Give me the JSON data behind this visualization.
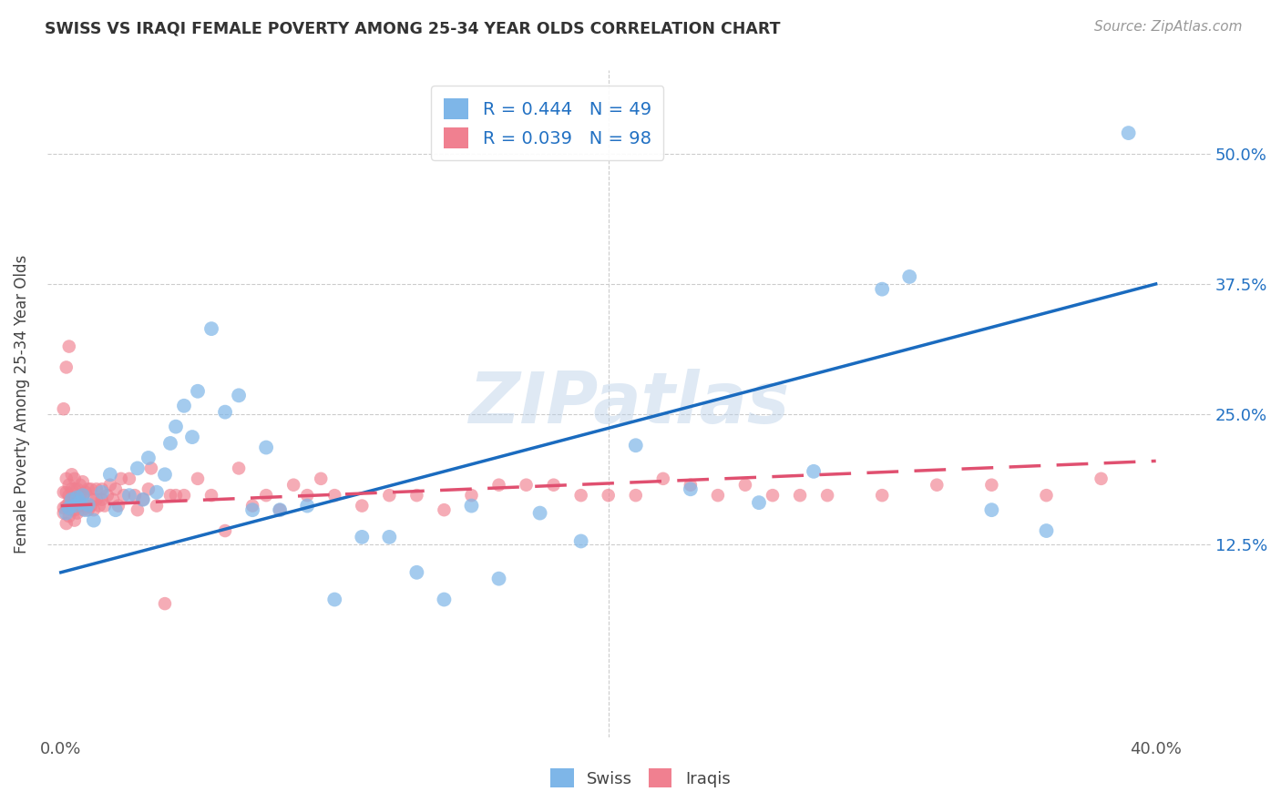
{
  "title": "SWISS VS IRAQI FEMALE POVERTY AMONG 25-34 YEAR OLDS CORRELATION CHART",
  "source": "Source: ZipAtlas.com",
  "ylabel": "Female Poverty Among 25-34 Year Olds",
  "xlim": [
    -0.005,
    0.42
  ],
  "ylim": [
    -0.06,
    0.58
  ],
  "swiss_color": "#7eb6e8",
  "iraqi_color": "#f08090",
  "swiss_line_color": "#1a6bbf",
  "iraqi_line_color": "#e05070",
  "swiss_R": 0.444,
  "swiss_N": 49,
  "iraqi_R": 0.039,
  "iraqi_N": 98,
  "watermark": "ZIPatlas",
  "legend_label_swiss": "Swiss",
  "legend_label_iraqi": "Iraqis",
  "right_tick_color": "#2271c3",
  "swiss_x": [
    0.002,
    0.003,
    0.004,
    0.005,
    0.006,
    0.007,
    0.008,
    0.009,
    0.01,
    0.012,
    0.015,
    0.018,
    0.02,
    0.025,
    0.028,
    0.03,
    0.032,
    0.035,
    0.038,
    0.04,
    0.042,
    0.045,
    0.048,
    0.05,
    0.055,
    0.06,
    0.065,
    0.07,
    0.075,
    0.08,
    0.09,
    0.1,
    0.11,
    0.12,
    0.13,
    0.14,
    0.15,
    0.16,
    0.175,
    0.19,
    0.21,
    0.23,
    0.255,
    0.275,
    0.3,
    0.31,
    0.34,
    0.36,
    0.39
  ],
  "swiss_y": [
    0.155,
    0.16,
    0.168,
    0.162,
    0.17,
    0.165,
    0.172,
    0.158,
    0.163,
    0.148,
    0.175,
    0.192,
    0.158,
    0.172,
    0.198,
    0.168,
    0.208,
    0.175,
    0.192,
    0.222,
    0.238,
    0.258,
    0.228,
    0.272,
    0.332,
    0.252,
    0.268,
    0.158,
    0.218,
    0.158,
    0.162,
    0.072,
    0.132,
    0.132,
    0.098,
    0.072,
    0.162,
    0.092,
    0.155,
    0.128,
    0.22,
    0.178,
    0.165,
    0.195,
    0.37,
    0.382,
    0.158,
    0.138,
    0.52
  ],
  "iraqi_x": [
    0.001,
    0.001,
    0.001,
    0.002,
    0.002,
    0.002,
    0.002,
    0.003,
    0.003,
    0.003,
    0.003,
    0.004,
    0.004,
    0.004,
    0.004,
    0.005,
    0.005,
    0.005,
    0.005,
    0.005,
    0.006,
    0.006,
    0.006,
    0.007,
    0.007,
    0.007,
    0.008,
    0.008,
    0.008,
    0.009,
    0.009,
    0.01,
    0.01,
    0.011,
    0.011,
    0.012,
    0.012,
    0.013,
    0.013,
    0.014,
    0.015,
    0.015,
    0.016,
    0.017,
    0.018,
    0.019,
    0.02,
    0.021,
    0.022,
    0.023,
    0.025,
    0.027,
    0.028,
    0.03,
    0.032,
    0.033,
    0.035,
    0.038,
    0.04,
    0.042,
    0.045,
    0.05,
    0.055,
    0.06,
    0.065,
    0.07,
    0.075,
    0.08,
    0.085,
    0.09,
    0.095,
    0.1,
    0.11,
    0.12,
    0.13,
    0.14,
    0.15,
    0.16,
    0.17,
    0.18,
    0.19,
    0.2,
    0.21,
    0.22,
    0.23,
    0.24,
    0.25,
    0.26,
    0.27,
    0.28,
    0.3,
    0.32,
    0.34,
    0.36,
    0.38,
    0.001,
    0.002,
    0.003
  ],
  "iraqi_y": [
    0.155,
    0.16,
    0.175,
    0.145,
    0.162,
    0.175,
    0.188,
    0.152,
    0.165,
    0.172,
    0.182,
    0.158,
    0.168,
    0.178,
    0.192,
    0.148,
    0.158,
    0.168,
    0.178,
    0.188,
    0.155,
    0.168,
    0.178,
    0.162,
    0.172,
    0.182,
    0.158,
    0.172,
    0.185,
    0.162,
    0.175,
    0.158,
    0.178,
    0.162,
    0.178,
    0.168,
    0.158,
    0.178,
    0.168,
    0.162,
    0.178,
    0.168,
    0.162,
    0.172,
    0.182,
    0.168,
    0.178,
    0.162,
    0.188,
    0.172,
    0.188,
    0.172,
    0.158,
    0.168,
    0.178,
    0.198,
    0.162,
    0.068,
    0.172,
    0.172,
    0.172,
    0.188,
    0.172,
    0.138,
    0.198,
    0.162,
    0.172,
    0.158,
    0.182,
    0.172,
    0.188,
    0.172,
    0.162,
    0.172,
    0.172,
    0.158,
    0.172,
    0.182,
    0.182,
    0.182,
    0.172,
    0.172,
    0.172,
    0.188,
    0.182,
    0.172,
    0.182,
    0.172,
    0.172,
    0.172,
    0.172,
    0.182,
    0.182,
    0.172,
    0.188,
    0.255,
    0.295,
    0.315
  ],
  "swiss_line_x0": 0.0,
  "swiss_line_y0": 0.098,
  "swiss_line_x1": 0.4,
  "swiss_line_y1": 0.375,
  "iraqi_line_x0": 0.0,
  "iraqi_line_y0": 0.162,
  "iraqi_line_x1": 0.4,
  "iraqi_line_y1": 0.205
}
